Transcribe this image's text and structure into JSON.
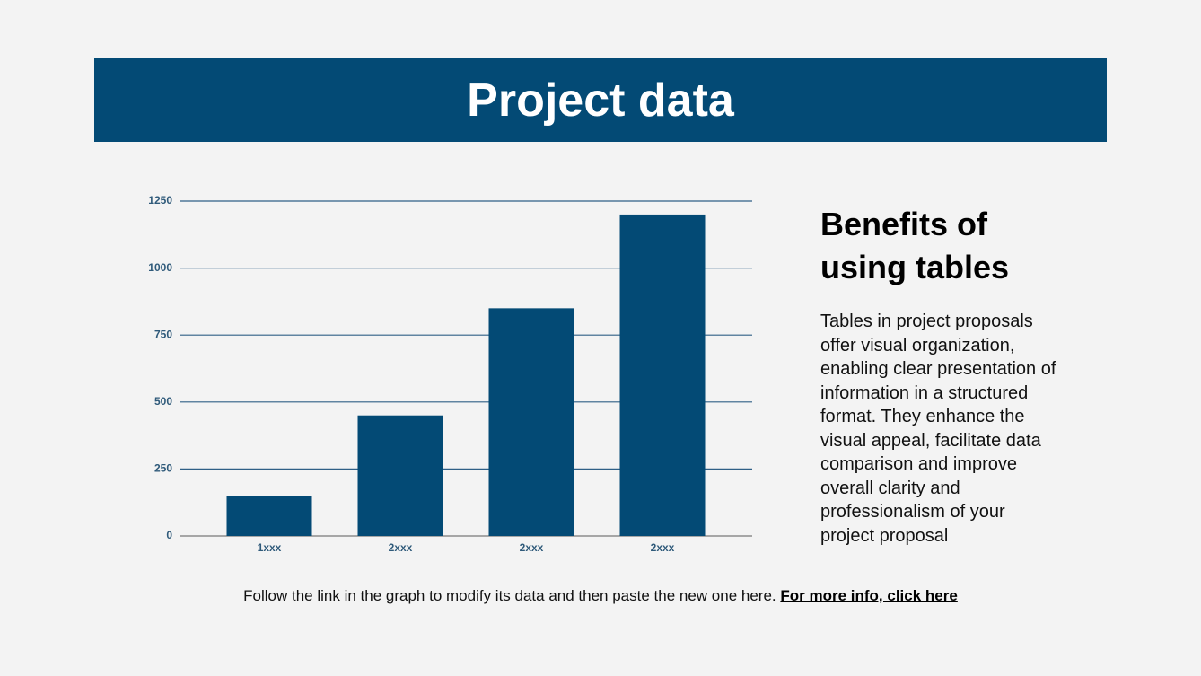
{
  "header": {
    "title": "Project data"
  },
  "chart_data": {
    "type": "bar",
    "categories": [
      "1xxx",
      "2xxx",
      "2xxx",
      "2xxx"
    ],
    "values": [
      150,
      450,
      850,
      1200
    ],
    "color": "#034a75",
    "ylim": [
      0,
      1250
    ],
    "yticks": [
      0,
      250,
      500,
      750,
      1000,
      1250
    ],
    "grid": true
  },
  "side": {
    "heading": "Benefits of using tables",
    "body": "Tables in project proposals offer visual organization, enabling clear presentation of information in a structured format. They enhance the visual appeal, facilitate data comparison and improve overall clarity and professionalism of your project proposal"
  },
  "footer": {
    "text": "Follow the link in the graph to modify its data and then paste the new one here.",
    "link": "For more info, click here"
  }
}
